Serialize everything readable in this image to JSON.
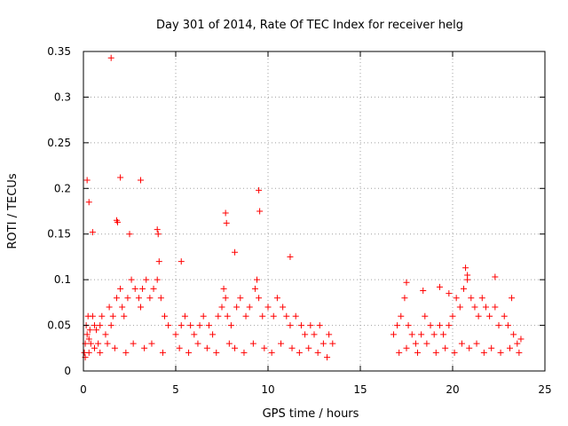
{
  "chart_data": {
    "type": "scatter",
    "title": "Day 301 of 2014, Rate Of TEC Index for receiver helg",
    "xlabel": "GPS time / hours",
    "ylabel": "ROTI / TECUs",
    "xlim": [
      0,
      25
    ],
    "ylim": [
      0,
      0.35
    ],
    "x_ticks": [
      0,
      5,
      10,
      15,
      20,
      25
    ],
    "x_tick_labels": [
      "0",
      "5",
      "10",
      "15",
      "20",
      "25"
    ],
    "y_ticks": [
      0,
      0.05,
      0.1,
      0.15,
      0.2,
      0.25,
      0.3,
      0.35
    ],
    "y_tick_labels": [
      "0",
      "0.05",
      "0.1",
      "0.15",
      "0.2",
      "0.25",
      "0.3",
      "0.35"
    ],
    "grid": true,
    "marker": "+",
    "marker_color": "#ff0000",
    "points_x": [
      0.05,
      0.1,
      0.15,
      0.2,
      0.25,
      0.3,
      0.35,
      0.4,
      0.5,
      0.6,
      0.7,
      0.8,
      0.9,
      1.0,
      1.2,
      1.4,
      1.5,
      1.6,
      1.8,
      2.0,
      2.1,
      2.2,
      2.4,
      2.6,
      2.8,
      3.0,
      3.1,
      3.2,
      3.4,
      3.6,
      3.8,
      4.0,
      4.1,
      4.2,
      4.4,
      4.6,
      5.0,
      5.3,
      5.5,
      5.8,
      6.0,
      6.3,
      6.5,
      6.8,
      7.0,
      7.3,
      7.5,
      7.6,
      7.7,
      7.8,
      8.0,
      8.3,
      8.5,
      8.8,
      9.0,
      9.3,
      9.4,
      9.5,
      9.7,
      10.0,
      10.3,
      10.5,
      10.8,
      11.0,
      11.2,
      11.5,
      11.8,
      12.0,
      12.3,
      12.5,
      12.8,
      13.0,
      13.3,
      13.5,
      16.8,
      17.0,
      17.2,
      17.4,
      17.6,
      17.8,
      18.0,
      18.3,
      18.5,
      18.8,
      19.0,
      19.3,
      19.5,
      19.8,
      20.0,
      20.2,
      20.4,
      20.6,
      20.8,
      21.0,
      21.2,
      21.4,
      21.6,
      21.8,
      22.0,
      22.3,
      22.5,
      22.8,
      23.0,
      23.3,
      23.5,
      23.7,
      0.1,
      0.3,
      0.6,
      0.9,
      1.3,
      1.7,
      2.3,
      2.7,
      3.3,
      3.7,
      4.3,
      5.2,
      5.7,
      6.2,
      6.7,
      7.2,
      7.9,
      8.2,
      8.7,
      9.2,
      9.8,
      10.2,
      10.7,
      11.3,
      11.7,
      12.2,
      12.7,
      13.2,
      17.1,
      17.5,
      18.1,
      18.6,
      19.1,
      19.6,
      20.1,
      20.5,
      20.9,
      21.3,
      21.7,
      22.1,
      22.6,
      23.1,
      23.6,
      1.5,
      2.0,
      3.1,
      0.2,
      0.3,
      9.5,
      9.55,
      7.7,
      7.75,
      0.5,
      1.8,
      1.85,
      2.5,
      4.0,
      4.05,
      5.3,
      8.2,
      11.2,
      20.7,
      20.8,
      22.3,
      23.2,
      17.5,
      18.4,
      19.3,
      19.8
    ],
    "points_y": [
      0.02,
      0.03,
      0.05,
      0.04,
      0.06,
      0.035,
      0.045,
      0.03,
      0.06,
      0.05,
      0.045,
      0.03,
      0.05,
      0.06,
      0.04,
      0.07,
      0.05,
      0.06,
      0.08,
      0.09,
      0.07,
      0.06,
      0.08,
      0.1,
      0.09,
      0.08,
      0.07,
      0.09,
      0.1,
      0.08,
      0.09,
      0.1,
      0.12,
      0.08,
      0.06,
      0.05,
      0.04,
      0.05,
      0.06,
      0.05,
      0.04,
      0.05,
      0.06,
      0.05,
      0.04,
      0.06,
      0.07,
      0.09,
      0.08,
      0.06,
      0.05,
      0.07,
      0.08,
      0.06,
      0.07,
      0.09,
      0.1,
      0.08,
      0.06,
      0.07,
      0.06,
      0.08,
      0.07,
      0.06,
      0.05,
      0.06,
      0.05,
      0.04,
      0.05,
      0.04,
      0.05,
      0.03,
      0.04,
      0.03,
      0.04,
      0.05,
      0.06,
      0.08,
      0.05,
      0.04,
      0.03,
      0.04,
      0.06,
      0.05,
      0.04,
      0.05,
      0.04,
      0.05,
      0.06,
      0.08,
      0.07,
      0.09,
      0.1,
      0.08,
      0.07,
      0.06,
      0.08,
      0.07,
      0.06,
      0.07,
      0.05,
      0.06,
      0.05,
      0.04,
      0.03,
      0.035,
      0.015,
      0.02,
      0.025,
      0.02,
      0.03,
      0.025,
      0.02,
      0.03,
      0.025,
      0.03,
      0.02,
      0.025,
      0.02,
      0.03,
      0.025,
      0.02,
      0.03,
      0.025,
      0.02,
      0.03,
      0.025,
      0.02,
      0.03,
      0.025,
      0.02,
      0.025,
      0.02,
      0.015,
      0.02,
      0.025,
      0.02,
      0.03,
      0.02,
      0.025,
      0.02,
      0.03,
      0.025,
      0.03,
      0.02,
      0.025,
      0.02,
      0.025,
      0.02,
      0.343,
      0.212,
      0.209,
      0.209,
      0.185,
      0.198,
      0.175,
      0.173,
      0.162,
      0.152,
      0.165,
      0.163,
      0.15,
      0.155,
      0.15,
      0.12,
      0.13,
      0.125,
      0.113,
      0.105,
      0.103,
      0.08,
      0.097,
      0.088,
      0.092,
      0.085
    ]
  }
}
